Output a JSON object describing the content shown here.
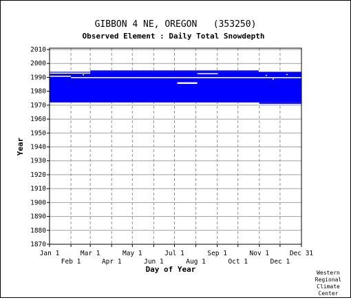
{
  "chart_data": {
    "type": "heatmap",
    "title": "GIBBON 4 NE, OREGON   (353250)",
    "subtitle": "Observed Element : Daily Total Snowdepth",
    "xlabel": "Day of Year",
    "ylabel": "Year",
    "x_ticks_upper": [
      "Jan 1",
      "Mar 1",
      "May 1",
      "Jul 1",
      "Sep 1",
      "Nov 1",
      "Dec 31"
    ],
    "x_ticks_lower": [
      "Feb 1",
      "Apr 1",
      "Jun 1",
      "Aug 1",
      "Oct 1",
      "Dec 1"
    ],
    "y_ticks": [
      2010,
      2000,
      1990,
      1980,
      1970,
      1960,
      1950,
      1940,
      1930,
      1920,
      1910,
      1900,
      1890,
      1880,
      1870
    ],
    "xlim": [
      1,
      366
    ],
    "ylim": [
      1870,
      2011
    ],
    "grid": true,
    "data_color": "#0000ff",
    "coverage": [
      {
        "start_day": 1,
        "end_day": 366,
        "start_year": 1972,
        "end_year": 1994
      },
      {
        "start_day": 60,
        "end_day": 304,
        "start_year": 1994,
        "end_year": 1995
      },
      {
        "start_day": 305,
        "end_day": 366,
        "start_year": 1971,
        "end_year": 1972
      }
    ],
    "gaps": [
      {
        "start_day": 1,
        "end_day": 60,
        "start_year": 1993,
        "end_year": 1993.4
      },
      {
        "start_day": 1,
        "end_day": 32,
        "start_year": 1990.8,
        "end_year": 1991.2
      },
      {
        "start_day": 32,
        "end_day": 366,
        "start_year": 1989.8,
        "end_year": 1990.2
      },
      {
        "start_day": 186,
        "end_day": 215,
        "start_year": 1985.3,
        "end_year": 1986.5
      },
      {
        "start_day": 215,
        "end_day": 245,
        "start_year": 1992.6,
        "end_year": 1993.0
      },
      {
        "start_day": 314,
        "end_day": 316,
        "start_year": 1991.2,
        "end_year": 1991.8
      },
      {
        "start_day": 324,
        "end_day": 326,
        "start_year": 1988.5,
        "end_year": 1989.2
      },
      {
        "start_day": 344,
        "end_day": 346,
        "start_year": 1991.8,
        "end_year": 1992.4
      },
      {
        "start_day": 49,
        "end_day": 51,
        "start_year": 1991.5,
        "end_year": 1992.2
      }
    ]
  },
  "credit": [
    "Western",
    "Regional",
    "Climate",
    "Center"
  ]
}
